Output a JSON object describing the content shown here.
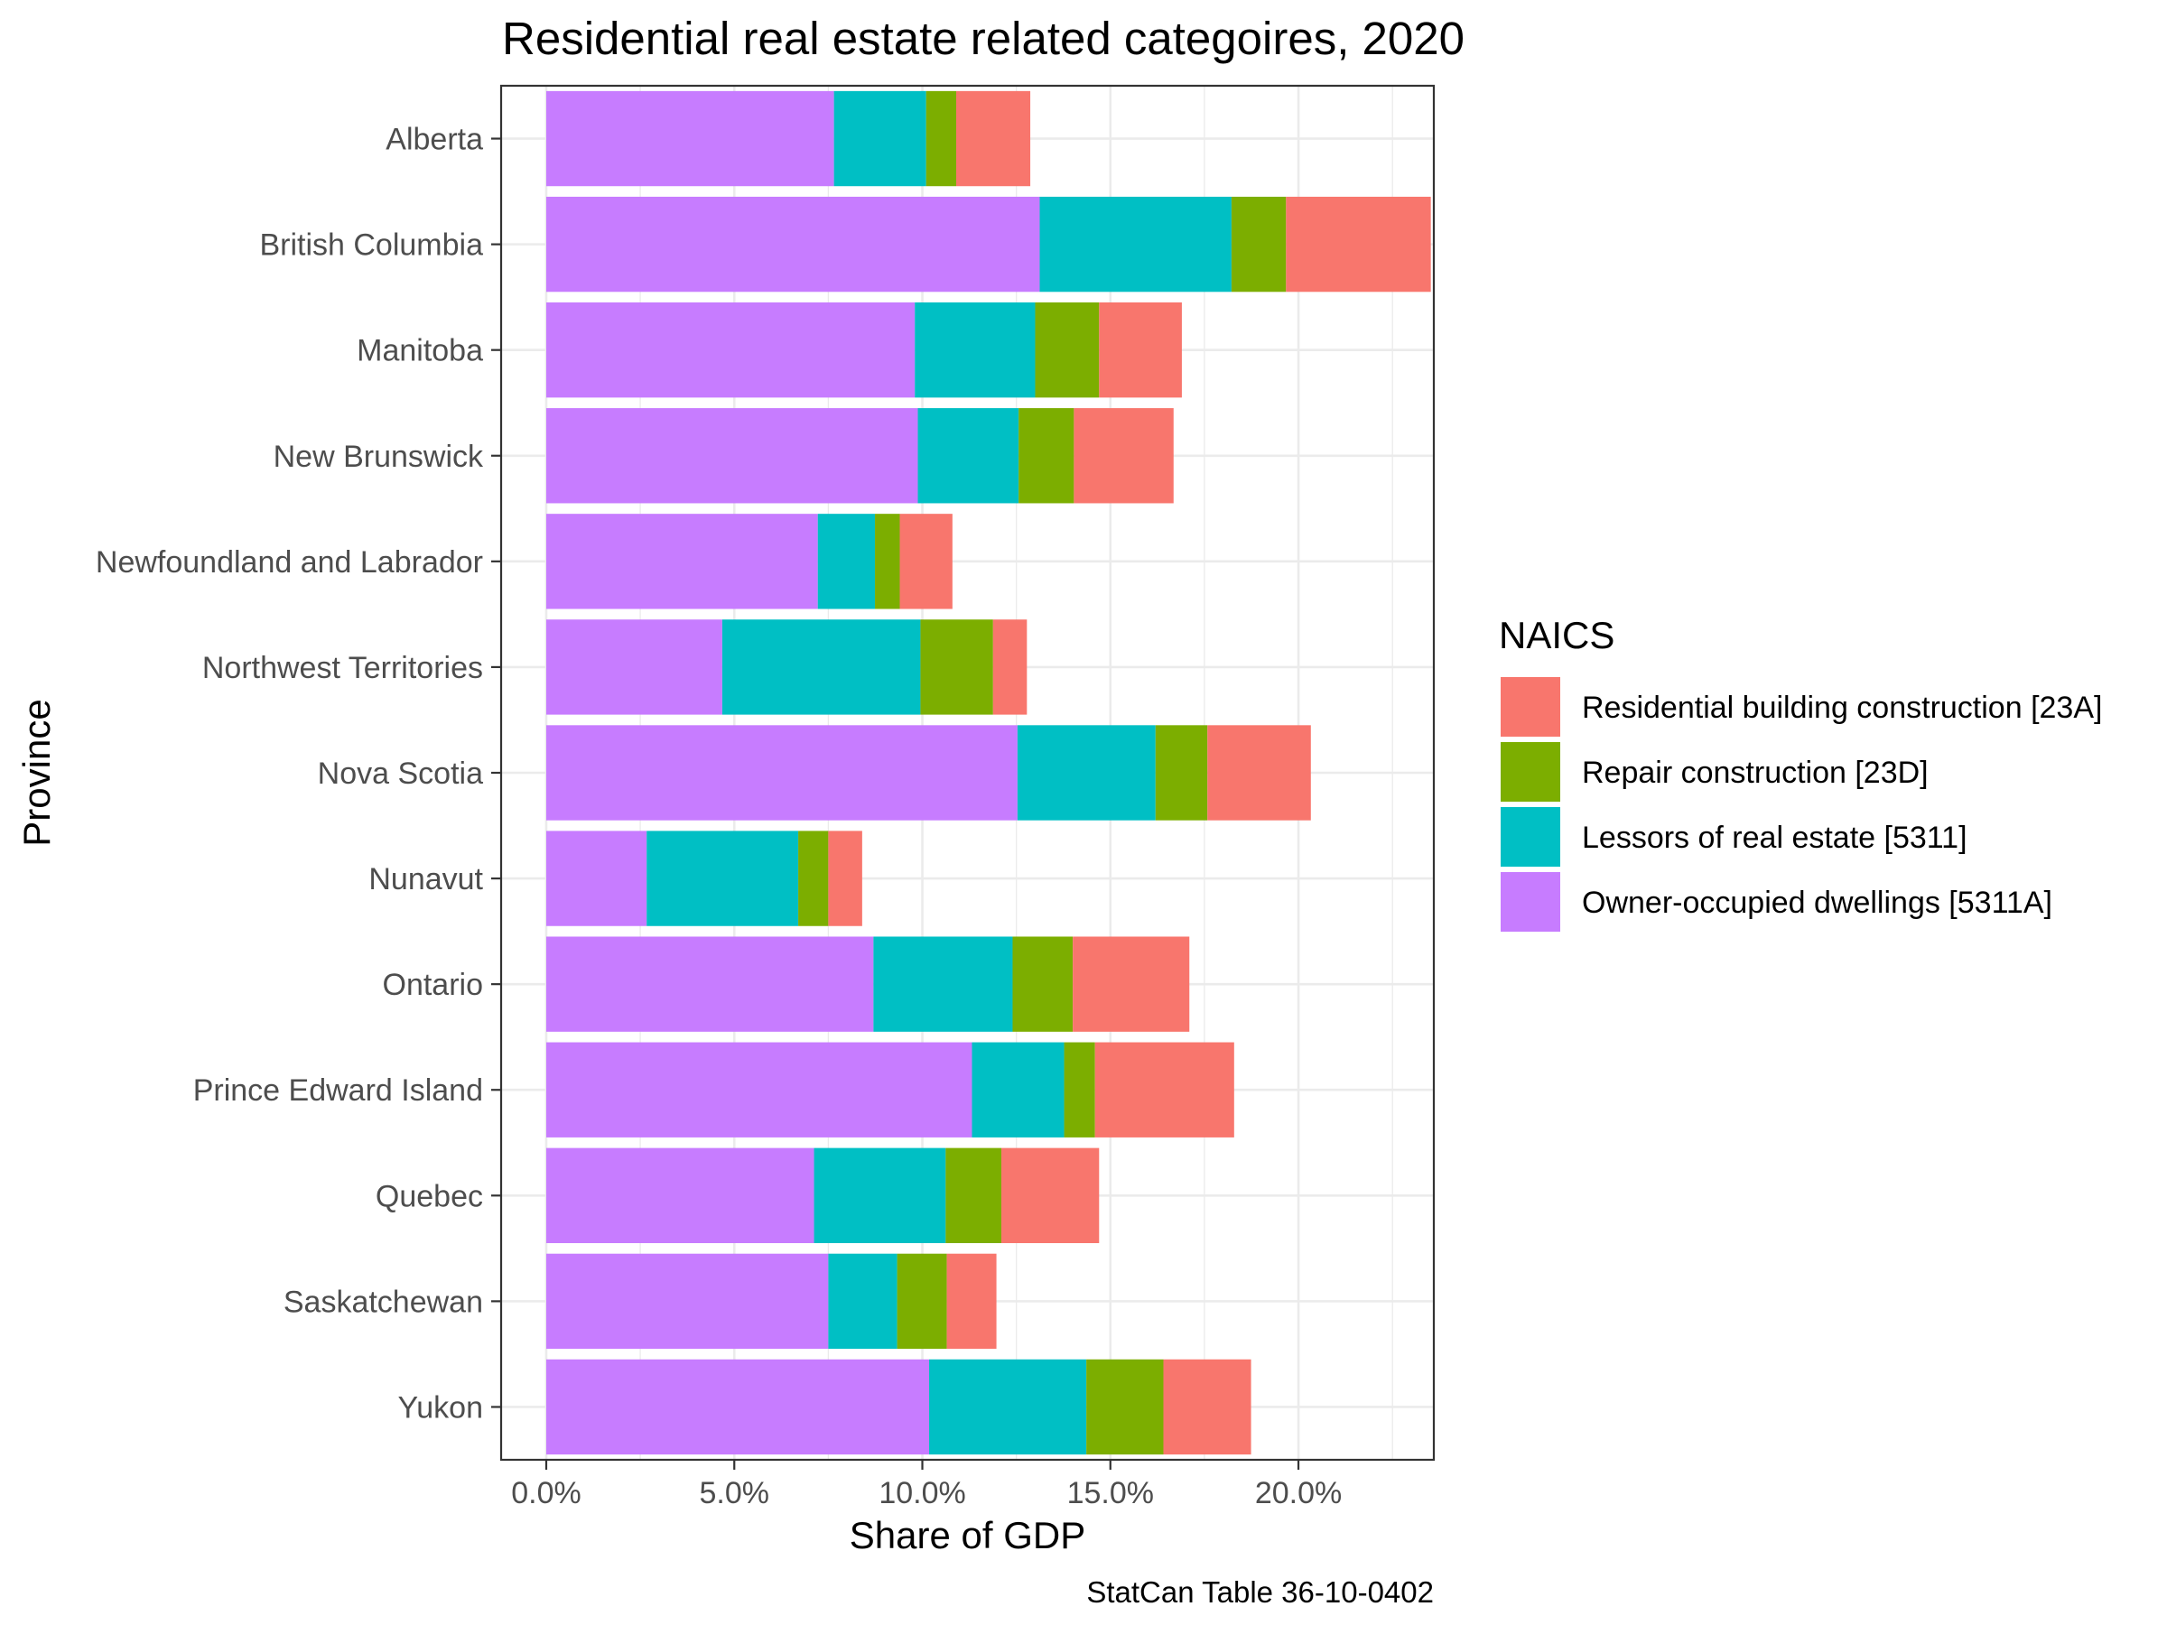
{
  "chart_data": {
    "type": "bar",
    "orientation": "horizontal",
    "stacked": true,
    "title": "Residential real estate related categoires, 2020",
    "xlabel": "Share of GDP",
    "ylabel": "Province",
    "caption": "StatCan Table 36-10-0402",
    "xlim": [
      -0.012,
      0.236
    ],
    "x_ticks": [
      0,
      0.05,
      0.1,
      0.15,
      0.2
    ],
    "x_tick_labels": [
      "0.0%",
      "5.0%",
      "10.0%",
      "15.0%",
      "20.0%"
    ],
    "grid": true,
    "legend": {
      "title": "NAICS",
      "position": "right"
    },
    "categories": [
      "Alberta",
      "British Columbia",
      "Manitoba",
      "New Brunswick",
      "Newfoundland and Labrador",
      "Northwest Territories",
      "Nova Scotia",
      "Nunavut",
      "Ontario",
      "Prince Edward Island",
      "Quebec",
      "Saskatchewan",
      "Yukon"
    ],
    "series": [
      {
        "name": "Owner-occupied dwellings [5311A]",
        "color": "#C77CFF",
        "values": [
          0.0765,
          0.1312,
          0.098,
          0.0988,
          0.0722,
          0.0468,
          0.1253,
          0.0267,
          0.087,
          0.1132,
          0.0712,
          0.075,
          0.1018
        ]
      },
      {
        "name": "Lessors of real estate [5311]",
        "color": "#00BFC4",
        "values": [
          0.0245,
          0.051,
          0.032,
          0.0268,
          0.0152,
          0.0527,
          0.0367,
          0.0403,
          0.037,
          0.0245,
          0.035,
          0.0183,
          0.0418
        ]
      },
      {
        "name": "Repair construction [23D]",
        "color": "#7CAE00",
        "values": [
          0.008,
          0.0145,
          0.017,
          0.0147,
          0.0066,
          0.0193,
          0.0138,
          0.008,
          0.016,
          0.0082,
          0.0148,
          0.0132,
          0.0205
        ]
      },
      {
        "name": "Residential building construction [23A]",
        "color": "#F8766D",
        "values": [
          0.0197,
          0.0385,
          0.022,
          0.0265,
          0.014,
          0.009,
          0.0275,
          0.009,
          0.031,
          0.037,
          0.026,
          0.0132,
          0.0233
        ]
      }
    ],
    "legend_order": [
      "Residential building construction [23A]",
      "Repair construction [23D]",
      "Lessors of real estate [5311]",
      "Owner-occupied dwellings [5311A]"
    ]
  }
}
